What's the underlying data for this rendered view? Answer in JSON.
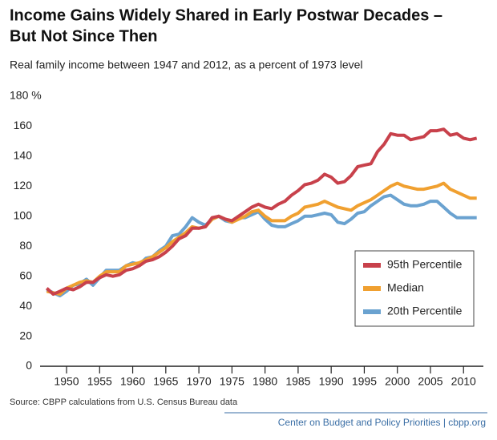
{
  "chart_data": {
    "type": "line",
    "title": [
      "Income Gains Widely Shared in Early Postwar Decades –",
      "But Not Since Then"
    ],
    "subtitle": "Real family income between 1947 and 2012, as a percent of 1973 level",
    "source": "Source: CBPP calculations from U.S. Census Bureau data",
    "credit": "Center on Budget and Policy Priorities | cbpp.org",
    "x": [
      1947,
      1948,
      1949,
      1950,
      1951,
      1952,
      1953,
      1954,
      1955,
      1956,
      1957,
      1958,
      1959,
      1960,
      1961,
      1962,
      1963,
      1964,
      1965,
      1966,
      1967,
      1968,
      1969,
      1970,
      1971,
      1972,
      1973,
      1974,
      1975,
      1976,
      1977,
      1978,
      1979,
      1980,
      1981,
      1982,
      1983,
      1984,
      1985,
      1986,
      1987,
      1988,
      1989,
      1990,
      1991,
      1992,
      1993,
      1994,
      1995,
      1996,
      1997,
      1998,
      1999,
      2000,
      2001,
      2002,
      2003,
      2004,
      2005,
      2006,
      2007,
      2008,
      2009,
      2010,
      2011,
      2012
    ],
    "xlim": [
      1946,
      2013
    ],
    "xticks": [
      1950,
      1955,
      1960,
      1965,
      1970,
      1975,
      1980,
      1985,
      1990,
      1995,
      2000,
      2005,
      2010
    ],
    "ylim": [
      0,
      180
    ],
    "yticks": [
      0,
      20,
      40,
      60,
      80,
      100,
      120,
      140,
      160,
      {
        "value": 180,
        "label": "180 %"
      }
    ],
    "legend": "lower right",
    "series": [
      {
        "name": "95th Percentile",
        "color": "#c8414b",
        "values": [
          52,
          48,
          50,
          52,
          51,
          53,
          56,
          56,
          59,
          61,
          60,
          61,
          64,
          65,
          67,
          70,
          71,
          73,
          76,
          80,
          85,
          87,
          92,
          92,
          93,
          99,
          100,
          98,
          97,
          100,
          103,
          106,
          108,
          106,
          105,
          108,
          110,
          114,
          117,
          121,
          122,
          124,
          128,
          126,
          122,
          123,
          127,
          133,
          134,
          135,
          143,
          148,
          155,
          154,
          154,
          151,
          152,
          153,
          157,
          157,
          158,
          154,
          155,
          152,
          151,
          152
        ]
      },
      {
        "name": "Median",
        "color": "#f0a030",
        "values": [
          50,
          49,
          48,
          52,
          54,
          56,
          57,
          56,
          60,
          63,
          63,
          63,
          67,
          68,
          69,
          71,
          73,
          76,
          79,
          83,
          86,
          89,
          93,
          92,
          93,
          98,
          100,
          98,
          96,
          98,
          100,
          103,
          104,
          100,
          97,
          97,
          97,
          100,
          102,
          106,
          107,
          108,
          110,
          108,
          106,
          105,
          104,
          107,
          109,
          111,
          114,
          117,
          120,
          122,
          120,
          119,
          118,
          118,
          119,
          120,
          122,
          118,
          116,
          114,
          112,
          112
        ]
      },
      {
        "name": "20th Percentile",
        "color": "#6aa2d0",
        "values": [
          51,
          49,
          47,
          50,
          54,
          55,
          58,
          54,
          59,
          64,
          64,
          64,
          67,
          69,
          68,
          72,
          73,
          77,
          80,
          87,
          88,
          93,
          99,
          96,
          94,
          98,
          100,
          97,
          96,
          99,
          99,
          101,
          103,
          98,
          94,
          93,
          93,
          95,
          97,
          100,
          100,
          101,
          102,
          101,
          96,
          95,
          98,
          102,
          103,
          107,
          110,
          113,
          114,
          111,
          108,
          107,
          107,
          108,
          110,
          110,
          106,
          102,
          99,
          99,
          99,
          99
        ]
      }
    ]
  }
}
